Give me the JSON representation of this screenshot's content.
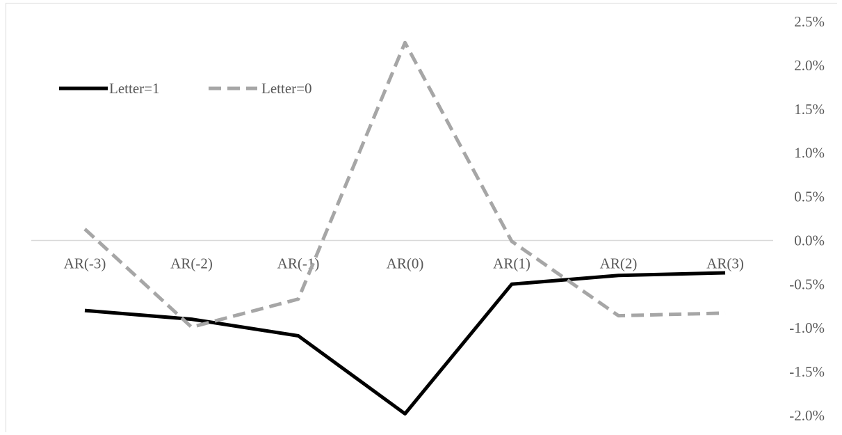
{
  "chart_data": {
    "type": "line",
    "categories": [
      "AR(-3)",
      "AR(-2)",
      "AR(-1)",
      "AR(0)",
      "AR(1)",
      "AR(2)",
      "AR(3)"
    ],
    "series": [
      {
        "name": "Letter=1",
        "values": [
          -0.008,
          -0.009,
          -0.0109,
          -0.0198,
          -0.005,
          -0.004,
          -0.0037
        ],
        "color": "#000000",
        "style": "solid"
      },
      {
        "name": "Letter=0",
        "values": [
          0.0013,
          -0.0099,
          -0.0067,
          0.0226,
          -0.0001,
          -0.0086,
          -0.0083
        ],
        "color": "#a6a6a6",
        "style": "dashed"
      }
    ],
    "y_ticks": [
      "2.5%",
      "2.0%",
      "1.5%",
      "1.0%",
      "0.5%",
      "0.0%",
      "-0.5%",
      "-1.0%",
      "-1.5%",
      "-2.0%"
    ],
    "ylim": [
      -0.02,
      0.025
    ],
    "y_axis_position": "right",
    "category_labels_position": "at zero line",
    "legend_position": "top-left",
    "grid": false
  }
}
